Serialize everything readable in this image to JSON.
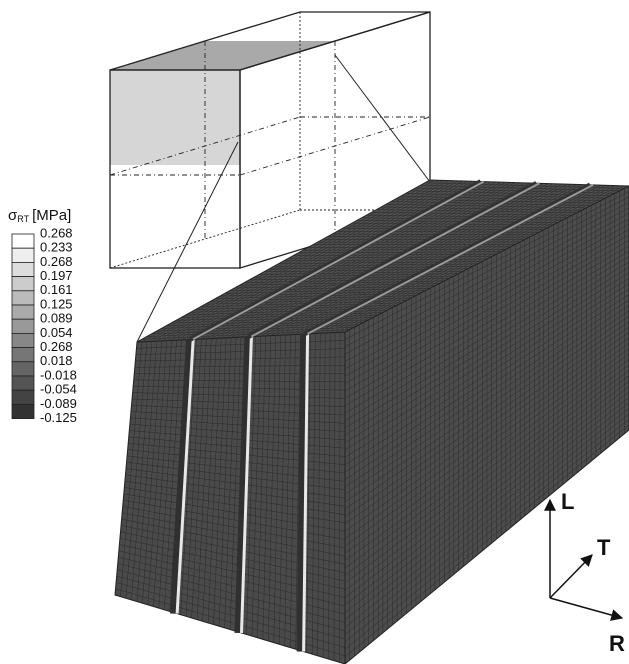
{
  "legend": {
    "title": {
      "symbol": "σ",
      "subscript": "RT",
      "unit": "[MPa]"
    },
    "labels": [
      "0.268",
      "0.233",
      "0.268",
      "0.197",
      "0.161",
      "0.125",
      "0.089",
      "0.054",
      "0.268",
      "0.018",
      "-0.018",
      "-0.054",
      "-0.089",
      "-0.125"
    ]
  },
  "axes": [
    {
      "label": "L"
    },
    {
      "label": "T"
    },
    {
      "label": "R"
    }
  ]
}
